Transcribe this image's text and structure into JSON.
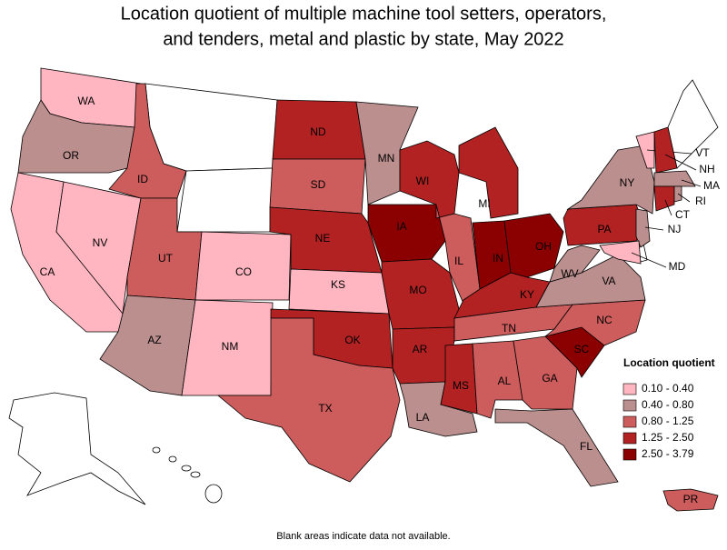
{
  "title_lines": [
    "Location quotient of multiple machine tool setters, operators,",
    "and tenders, metal and plastic by state, May 2022"
  ],
  "legend": {
    "title": "Location quotient",
    "items": [
      {
        "label": "0.10 - 0.40",
        "color": "#ffb6c1"
      },
      {
        "label": "0.40 - 0.80",
        "color": "#bc8f8f"
      },
      {
        "label": "0.80 - 1.25",
        "color": "#cd5c5c"
      },
      {
        "label": "1.25 - 2.50",
        "color": "#b22222"
      },
      {
        "label": "2.50 - 3.79",
        "color": "#8b0000"
      }
    ]
  },
  "states": [
    {
      "abbr": "WA",
      "bin": 0
    },
    {
      "abbr": "OR",
      "bin": 1
    },
    {
      "abbr": "CA",
      "bin": 0
    },
    {
      "abbr": "NV",
      "bin": 0
    },
    {
      "abbr": "ID",
      "bin": 2
    },
    {
      "abbr": "UT",
      "bin": 2
    },
    {
      "abbr": "CO",
      "bin": 0
    },
    {
      "abbr": "AZ",
      "bin": 1
    },
    {
      "abbr": "NM",
      "bin": 0
    },
    {
      "abbr": "ND",
      "bin": 3
    },
    {
      "abbr": "SD",
      "bin": 2
    },
    {
      "abbr": "NE",
      "bin": 3
    },
    {
      "abbr": "KS",
      "bin": 0
    },
    {
      "abbr": "OK",
      "bin": 3
    },
    {
      "abbr": "TX",
      "bin": 2
    },
    {
      "abbr": "MN",
      "bin": 1
    },
    {
      "abbr": "IA",
      "bin": 4
    },
    {
      "abbr": "MO",
      "bin": 3
    },
    {
      "abbr": "AR",
      "bin": 3
    },
    {
      "abbr": "LA",
      "bin": 1
    },
    {
      "abbr": "WI",
      "bin": 3
    },
    {
      "abbr": "IL",
      "bin": 2
    },
    {
      "abbr": "MI",
      "bin": 3
    },
    {
      "abbr": "IN",
      "bin": 4
    },
    {
      "abbr": "OH",
      "bin": 4
    },
    {
      "abbr": "KY",
      "bin": 3
    },
    {
      "abbr": "TN",
      "bin": 2
    },
    {
      "abbr": "MS",
      "bin": 3
    },
    {
      "abbr": "AL",
      "bin": 2
    },
    {
      "abbr": "GA",
      "bin": 2
    },
    {
      "abbr": "FL",
      "bin": 1
    },
    {
      "abbr": "SC",
      "bin": 4
    },
    {
      "abbr": "NC",
      "bin": 2
    },
    {
      "abbr": "VA",
      "bin": 1
    },
    {
      "abbr": "WV",
      "bin": 1
    },
    {
      "abbr": "PA",
      "bin": 3
    },
    {
      "abbr": "NY",
      "bin": 1
    },
    {
      "abbr": "VT",
      "bin": 0
    },
    {
      "abbr": "NH",
      "bin": 3
    },
    {
      "abbr": "MA",
      "bin": 1
    },
    {
      "abbr": "CT",
      "bin": 3
    },
    {
      "abbr": "RI",
      "bin": 1
    },
    {
      "abbr": "NJ",
      "bin": 1
    },
    {
      "abbr": "MD",
      "bin": 0
    },
    {
      "abbr": "PR",
      "bin": 2
    }
  ],
  "footnote": "Blank areas indicate data not available."
}
